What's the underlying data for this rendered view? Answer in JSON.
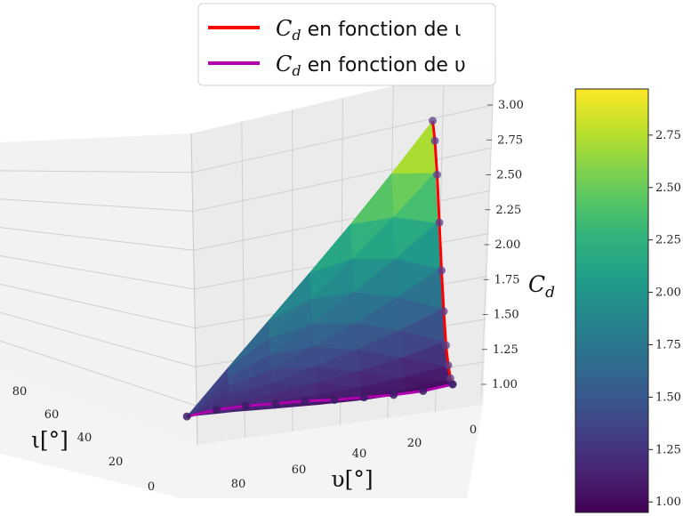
{
  "chart_data": {
    "type": "surface3d",
    "legend": {
      "placement": "top-center",
      "entries": [
        {
          "name": "C_d en fonction de ι",
          "color": "#ff0000",
          "text_parts": [
            "C",
            "d",
            " en fonction de ι"
          ]
        },
        {
          "name": "C_d en fonction de υ",
          "color": "#b000b0",
          "text_parts": [
            "C",
            "d",
            " en fonction de υ"
          ]
        }
      ]
    },
    "axes": {
      "x": {
        "label": "υ[°]",
        "ticks": [
          "0",
          "20",
          "40",
          "60",
          "80"
        ],
        "range": [
          0,
          90
        ]
      },
      "y": {
        "label": "ι[°]",
        "ticks": [
          "0",
          "20",
          "40",
          "60",
          "80"
        ],
        "range": [
          0,
          90
        ]
      },
      "z": {
        "label_parts": [
          "C",
          "d"
        ],
        "ticks": [
          "1.00",
          "1.25",
          "1.50",
          "1.75",
          "2.00",
          "2.25",
          "2.50",
          "2.75",
          "3.00"
        ],
        "range": [
          1.0,
          3.0
        ]
      }
    },
    "colorbar": {
      "colormap": "viridis",
      "range": [
        0.95,
        2.97
      ],
      "ticks": [
        "1.00",
        "1.25",
        "1.50",
        "1.75",
        "2.00",
        "2.25",
        "2.50",
        "2.75"
      ]
    },
    "series": [
      {
        "name": "C_d en fonction de ι",
        "x_fixed": 0,
        "y": [
          0,
          10,
          20,
          30,
          40,
          50,
          60,
          70,
          80,
          90
        ],
        "cd": [
          1.0,
          1.05,
          1.15,
          1.3,
          1.55,
          1.85,
          2.2,
          2.55,
          2.8,
          2.95
        ]
      },
      {
        "name": "C_d en fonction de υ",
        "y_fixed": 0,
        "x": [
          0,
          10,
          20,
          30,
          40,
          50,
          60,
          70,
          80,
          90
        ],
        "cd": [
          1.0,
          1.0,
          1.02,
          1.05,
          1.08,
          1.12,
          1.15,
          1.18,
          1.2,
          1.2
        ]
      }
    ]
  }
}
